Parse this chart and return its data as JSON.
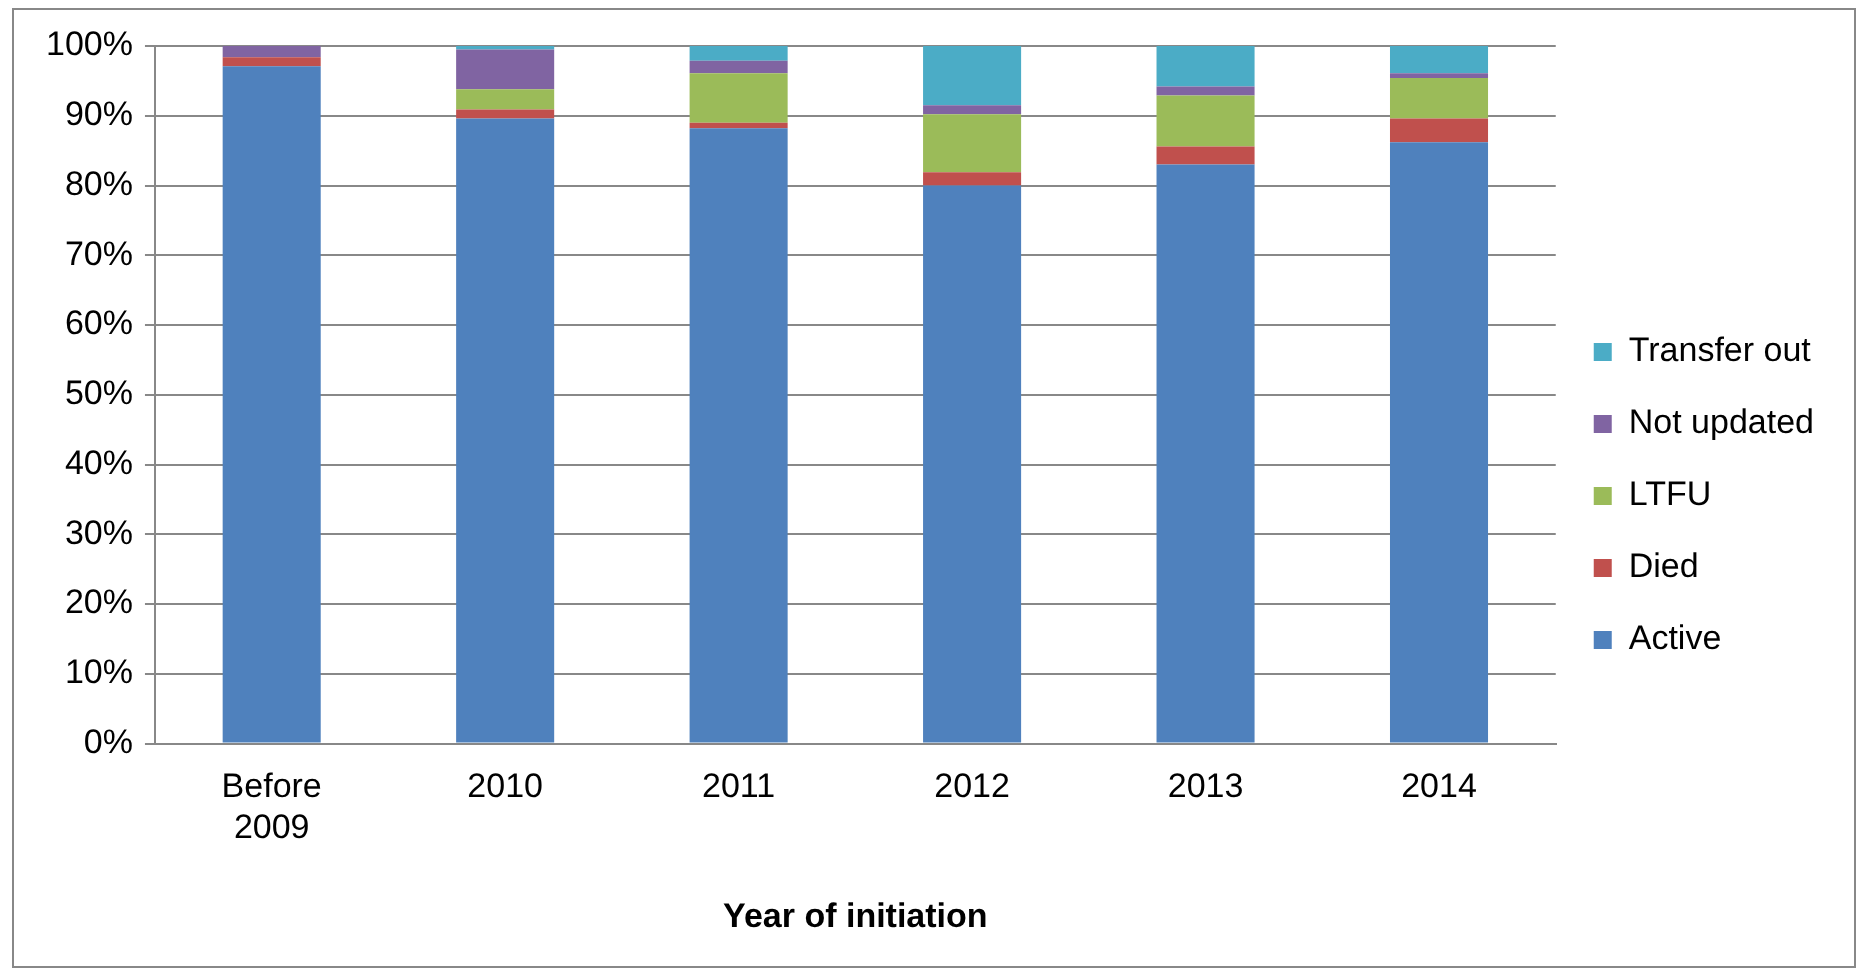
{
  "chart_data": {
    "type": "bar",
    "stacked": true,
    "xlabel": "Year of initiation",
    "categories": [
      "Before 2009",
      "2010",
      "2011",
      "2012",
      "2013",
      "2014"
    ],
    "series": [
      {
        "name": "Active",
        "color": "#4f81bd",
        "values": [
          97.1,
          89.6,
          88.2,
          80,
          83,
          86.2
        ]
      },
      {
        "name": "Died",
        "color": "#c0504d",
        "values": [
          1.3,
          1.3,
          0.8,
          1.9,
          2.6,
          3.4
        ]
      },
      {
        "name": "LTFU",
        "color": "#9bbb59",
        "values": [
          0,
          2.9,
          7.1,
          8.3,
          7.3,
          5.8
        ]
      },
      {
        "name": "Not updated",
        "color": "#8064a2",
        "values": [
          1.6,
          5.7,
          1.8,
          1.3,
          1.3,
          0.7
        ]
      },
      {
        "name": "Transfer out",
        "color": "#4bacc6",
        "values": [
          0,
          0.5,
          2.1,
          8.5,
          5.8,
          3.9
        ]
      }
    ],
    "ylim": [
      0,
      100
    ],
    "yticks": [
      {
        "value": 0,
        "label": "0%"
      },
      {
        "value": 10,
        "label": "10%"
      },
      {
        "value": 20,
        "label": "20%"
      },
      {
        "value": 30,
        "label": "30%"
      },
      {
        "value": 40,
        "label": "40%"
      },
      {
        "value": 50,
        "label": "50%"
      },
      {
        "value": 60,
        "label": "60%"
      },
      {
        "value": 70,
        "label": "70%"
      },
      {
        "value": 80,
        "label": "80%"
      },
      {
        "value": 90,
        "label": "90%"
      },
      {
        "value": 100,
        "label": "100%"
      }
    ],
    "grid": "y",
    "legend": "right"
  }
}
